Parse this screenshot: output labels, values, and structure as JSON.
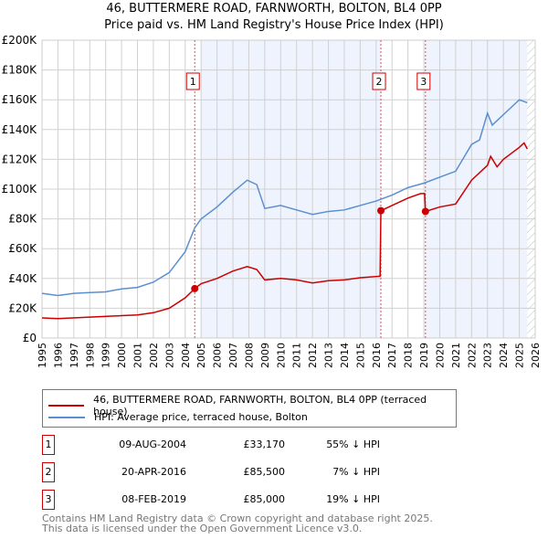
{
  "chart_data": {
    "type": "line",
    "title": "46, BUTTERMERE ROAD, FARNWORTH, BOLTON, BL4 0PP",
    "subtitle": "Price paid vs. HM Land Registry's House Price Index (HPI)",
    "xlim": [
      1995,
      2026
    ],
    "ylim": [
      0,
      200000
    ],
    "x_ticks": [
      "1995",
      "1996",
      "1997",
      "1998",
      "1999",
      "2000",
      "2001",
      "2002",
      "2003",
      "2004",
      "2005",
      "2006",
      "2007",
      "2008",
      "2009",
      "2010",
      "2011",
      "2012",
      "2013",
      "2014",
      "2015",
      "2016",
      "2017",
      "2018",
      "2019",
      "2020",
      "2021",
      "2022",
      "2023",
      "2024",
      "2025",
      "2026"
    ],
    "y_ticks": [
      {
        "v": 0,
        "label": "£0"
      },
      {
        "v": 20000,
        "label": "£20K"
      },
      {
        "v": 40000,
        "label": "£40K"
      },
      {
        "v": 60000,
        "label": "£60K"
      },
      {
        "v": 80000,
        "label": "£80K"
      },
      {
        "v": 100000,
        "label": "£100K"
      },
      {
        "v": 120000,
        "label": "£120K"
      },
      {
        "v": 140000,
        "label": "£140K"
      },
      {
        "v": 160000,
        "label": "£160K"
      },
      {
        "v": 180000,
        "label": "£180K"
      },
      {
        "v": 200000,
        "label": "£200K"
      }
    ],
    "grid": true,
    "shaded_ranges": [
      [
        2005,
        2016.3
      ],
      [
        2019.1,
        2025.5
      ]
    ],
    "hatched_range": [
      2025.5,
      2026
    ],
    "series": [
      {
        "name": "46, BUTTERMERE ROAD, FARNWORTH, BOLTON, BL4 0PP (terraced house)",
        "color": "#cc0000",
        "x": [
          1995,
          1996,
          1998,
          2000,
          2001,
          2002,
          2003,
          2004,
          2004.6,
          2005,
          2006,
          2007,
          2007.9,
          2008.5,
          2009,
          2010,
          2011,
          2012,
          2013,
          2014,
          2015,
          2016.25,
          2016.3,
          2017,
          2018,
          2018.8,
          2019.05,
          2019.1,
          2020,
          2021,
          2022,
          2023,
          2023.2,
          2023.6,
          2024,
          2025,
          2025.3,
          2025.5
        ],
        "y": [
          13500,
          13000,
          14000,
          15000,
          15500,
          17000,
          20000,
          27000,
          33170,
          36500,
          40000,
          45000,
          48000,
          46000,
          39000,
          40000,
          39000,
          37000,
          38500,
          39000,
          40500,
          41500,
          85500,
          89000,
          94000,
          97000,
          97000,
          85000,
          88000,
          90000,
          106000,
          116000,
          122000,
          115000,
          120000,
          128000,
          131000,
          127000
        ]
      },
      {
        "name": "HPI: Average price, terraced house, Bolton",
        "color": "#5b8fd0",
        "x": [
          1995,
          1996,
          1997,
          1998,
          1999,
          2000,
          2001,
          2002,
          2003,
          2004,
          2004.6,
          2005,
          2006,
          2007,
          2007.9,
          2008.5,
          2009,
          2010,
          2011,
          2012,
          2013,
          2014,
          2015,
          2016,
          2017,
          2018,
          2019,
          2020,
          2021,
          2022,
          2022.5,
          2023,
          2023.3,
          2024,
          2025,
          2025.5
        ],
        "y": [
          30000,
          28500,
          30000,
          30500,
          31000,
          33000,
          34000,
          37500,
          44000,
          58000,
          74000,
          80000,
          88000,
          98000,
          106000,
          103000,
          87000,
          89000,
          86000,
          83000,
          85000,
          86000,
          89000,
          92000,
          96000,
          101000,
          104000,
          108000,
          112000,
          130000,
          133000,
          151000,
          143000,
          150000,
          160000,
          158000
        ]
      }
    ],
    "sales": [
      {
        "n": "1",
        "x": 2004.6,
        "y": 33170,
        "date": "09-AUG-2004",
        "price": "£33,170",
        "hpi": "55% ↓ HPI"
      },
      {
        "n": "2",
        "x": 2016.3,
        "y": 85500,
        "date": "20-APR-2016",
        "price": "£85,500",
        "hpi": "7% ↓ HPI"
      },
      {
        "n": "3",
        "x": 2019.1,
        "y": 85000,
        "date": "08-FEB-2019",
        "price": "£85,000",
        "hpi": "19% ↓ HPI"
      }
    ],
    "legend_position": "below"
  },
  "footer": {
    "line1": "Contains HM Land Registry data © Crown copyright and database right 2025.",
    "line2": "This data is licensed under the Open Government Licence v3.0."
  }
}
